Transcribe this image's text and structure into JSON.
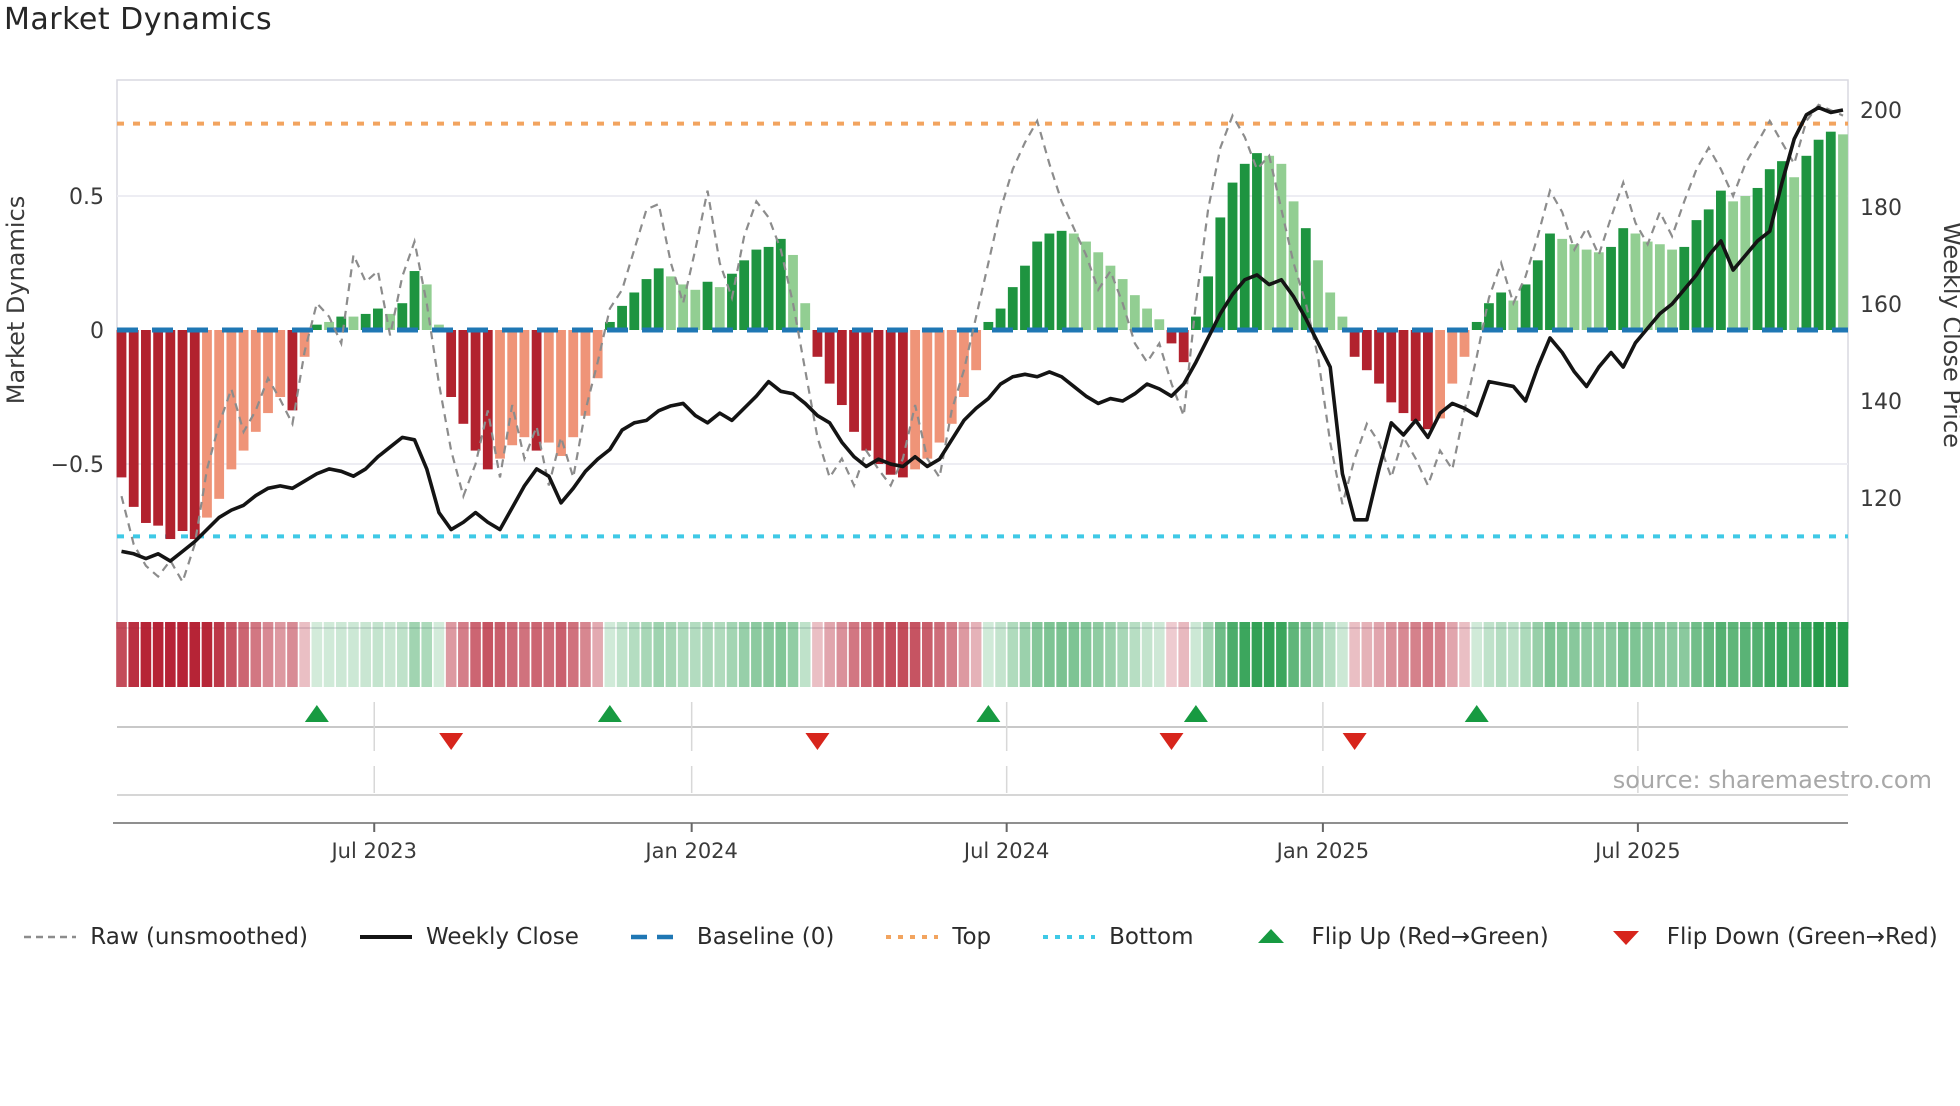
{
  "title": "Market Dynamics",
  "source": "source: sharemaestro.com",
  "axes": {
    "left_label": "Market Dynamics",
    "right_label": "Weekly Close Price",
    "left_ticks": [
      {
        "label": "0.5",
        "value": 0.5
      },
      {
        "label": "0",
        "value": 0
      },
      {
        "label": "−0.5",
        "value": -0.5
      }
    ],
    "right_ticks": [
      {
        "label": "200",
        "value": 200
      },
      {
        "label": "180",
        "value": 180
      },
      {
        "label": "160",
        "value": 160
      },
      {
        "label": "140",
        "value": 140
      },
      {
        "label": "120",
        "value": 120
      }
    ],
    "x_ticks": [
      {
        "label": "Jul 2023",
        "week": 20.7
      },
      {
        "label": "Jan 2024",
        "week": 46.7
      },
      {
        "label": "Jul 2024",
        "week": 72.5
      },
      {
        "label": "Jan 2025",
        "week": 98.4
      },
      {
        "label": "Jul 2025",
        "week": 124.2
      }
    ]
  },
  "colors": {
    "bar_dark_red": "#b2222e",
    "bar_light_red": "#ef9478",
    "bar_dark_green": "#1e9440",
    "bar_light_green": "#92ce92",
    "baseline": "#1f77b4",
    "top_line": "#f2a45f",
    "bottom_line": "#3fc9e6",
    "raw_line": "#8c8c8c",
    "price_line": "#141414",
    "flip_up": "#179a41",
    "flip_down": "#d7251c",
    "heat_red": "#b2182b",
    "heat_green": "#1a9641",
    "grid": "#ededf3",
    "spine": "#d9d9e0",
    "band_line": "#c8c8c8",
    "axis_spine": "#8f8f8f",
    "axis_text": "#3a3a3a",
    "title_text": "#262626",
    "source_text": "#a8a8a8"
  },
  "legend": {
    "items": [
      {
        "label": "Raw (unsmoothed)",
        "swatch": "dash-gray"
      },
      {
        "label": "Weekly Close",
        "swatch": "solid-black"
      },
      {
        "label": "Baseline (0)",
        "swatch": "dash-blue"
      },
      {
        "label": "Top",
        "swatch": "dot-orange"
      },
      {
        "label": "Bottom",
        "swatch": "dot-cyan"
      },
      {
        "label": "Flip Up (Red→Green)",
        "swatch": "tri-up"
      },
      {
        "label": "Flip Down (Green→Red)",
        "swatch": "tri-down"
      }
    ]
  },
  "chart_data": {
    "type": "combo",
    "description": "Weekly market-dynamics oscillator bars with raw overlay, weekly close price line, threshold lines, heatmap strip and regime-flip markers",
    "weeks": 142,
    "osc_axis": {
      "label": "Market Dynamics",
      "ticks": [
        0.5,
        0,
        -0.5
      ]
    },
    "price_axis": {
      "label": "Weekly Close Price",
      "ticks": [
        200,
        180,
        160,
        140,
        120
      ]
    },
    "thresholds": {
      "baseline": 0,
      "top": 0.77,
      "bottom": -0.77
    },
    "series": [
      {
        "name": "Oscillator (smoothed bars)",
        "values": [
          -0.55,
          -0.66,
          -0.72,
          -0.73,
          -0.78,
          -0.75,
          -0.78,
          -0.7,
          -0.63,
          -0.52,
          -0.45,
          -0.38,
          -0.31,
          -0.25,
          -0.3,
          -0.1,
          0.02,
          0.03,
          0.05,
          0.05,
          0.06,
          0.08,
          0.06,
          0.1,
          0.22,
          0.17,
          0.02,
          -0.25,
          -0.35,
          -0.45,
          -0.52,
          -0.48,
          -0.43,
          -0.4,
          -0.45,
          -0.42,
          -0.47,
          -0.4,
          -0.32,
          -0.18,
          0.03,
          0.09,
          0.14,
          0.19,
          0.23,
          0.2,
          0.17,
          0.15,
          0.18,
          0.16,
          0.21,
          0.26,
          0.3,
          0.31,
          0.34,
          0.28,
          0.1,
          -0.1,
          -0.2,
          -0.28,
          -0.38,
          -0.45,
          -0.5,
          -0.54,
          -0.55,
          -0.52,
          -0.48,
          -0.42,
          -0.35,
          -0.25,
          -0.15,
          0.03,
          0.08,
          0.16,
          0.24,
          0.33,
          0.36,
          0.37,
          0.36,
          0.33,
          0.29,
          0.24,
          0.19,
          0.13,
          0.08,
          0.04,
          -0.05,
          -0.12,
          0.05,
          0.2,
          0.42,
          0.55,
          0.62,
          0.66,
          0.65,
          0.62,
          0.48,
          0.38,
          0.26,
          0.14,
          0.05,
          -0.1,
          -0.15,
          -0.2,
          -0.27,
          -0.31,
          -0.34,
          -0.37,
          -0.33,
          -0.2,
          -0.1,
          0.03,
          0.1,
          0.14,
          0.11,
          0.17,
          0.26,
          0.36,
          0.34,
          0.32,
          0.3,
          0.29,
          0.31,
          0.38,
          0.36,
          0.33,
          0.32,
          0.3,
          0.31,
          0.41,
          0.45,
          0.52,
          0.48,
          0.5,
          0.53,
          0.6,
          0.63,
          0.57,
          0.65,
          0.71,
          0.74,
          0.73
        ],
        "shade": "dddddddllllllldldldlddlddllddddllldllllldddddlllMlddddd"
      },
      {
        "name": "Raw (unsmoothed)",
        "values": [
          -0.62,
          -0.8,
          -0.88,
          -0.92,
          -0.86,
          -0.94,
          -0.8,
          -0.52,
          -0.35,
          -0.22,
          -0.38,
          -0.3,
          -0.18,
          -0.26,
          -0.35,
          -0.08,
          0.1,
          0.05,
          -0.05,
          0.28,
          0.18,
          0.22,
          -0.02,
          0.2,
          0.33,
          0.1,
          -0.2,
          -0.45,
          -0.62,
          -0.5,
          -0.3,
          -0.55,
          -0.28,
          -0.48,
          -0.36,
          -0.58,
          -0.4,
          -0.55,
          -0.3,
          -0.12,
          0.08,
          0.15,
          0.3,
          0.45,
          0.47,
          0.25,
          0.1,
          0.3,
          0.52,
          0.25,
          0.12,
          0.35,
          0.48,
          0.42,
          0.3,
          0.1,
          -0.15,
          -0.4,
          -0.55,
          -0.48,
          -0.58,
          -0.45,
          -0.52,
          -0.58,
          -0.48,
          -0.28,
          -0.48,
          -0.55,
          -0.3,
          -0.15,
          0.05,
          0.25,
          0.45,
          0.6,
          0.7,
          0.78,
          0.62,
          0.48,
          0.38,
          0.28,
          0.15,
          0.22,
          0.1,
          -0.05,
          -0.12,
          -0.05,
          -0.2,
          -0.32,
          0.1,
          0.45,
          0.68,
          0.8,
          0.72,
          0.6,
          0.65,
          0.45,
          0.25,
          0.1,
          -0.1,
          -0.42,
          -0.65,
          -0.48,
          -0.35,
          -0.42,
          -0.55,
          -0.4,
          -0.48,
          -0.58,
          -0.45,
          -0.52,
          -0.3,
          -0.1,
          0.12,
          0.25,
          0.1,
          0.2,
          0.35,
          0.52,
          0.44,
          0.3,
          0.38,
          0.28,
          0.42,
          0.55,
          0.4,
          0.32,
          0.44,
          0.35,
          0.48,
          0.6,
          0.68,
          0.6,
          0.5,
          0.62,
          0.7,
          0.78,
          0.7,
          0.62,
          0.78,
          0.84,
          0.82,
          0.8
        ]
      },
      {
        "name": "Weekly Close",
        "values": [
          109,
          108.5,
          107.5,
          108.5,
          107,
          109,
          111,
          113.5,
          116,
          117.5,
          118.5,
          120.5,
          122,
          122.5,
          122,
          123.5,
          125,
          126,
          125.5,
          124.5,
          126,
          128.5,
          130.5,
          132.5,
          132,
          126,
          117,
          113.5,
          115,
          117,
          115,
          113.5,
          118,
          122.5,
          126,
          124.5,
          119,
          122,
          125.5,
          128,
          130,
          134,
          135.5,
          136,
          138,
          139,
          139.5,
          137,
          135.5,
          137.5,
          136,
          138.5,
          141,
          144,
          142,
          141.5,
          139.5,
          137,
          135.5,
          131.5,
          128.5,
          126.5,
          128,
          127,
          126.5,
          128.5,
          126.5,
          128,
          132,
          136,
          138.5,
          140.5,
          143.5,
          145,
          145.5,
          145,
          146,
          145,
          143,
          141,
          139.5,
          140.5,
          140,
          141.5,
          143.5,
          142.5,
          141,
          143.5,
          148,
          153,
          158,
          162,
          165,
          166,
          164,
          165,
          161.5,
          157,
          152,
          147,
          125,
          115.5,
          115.5,
          126,
          135.5,
          133,
          136,
          132.5,
          137.5,
          139.5,
          138.5,
          137,
          144,
          143.5,
          143,
          140,
          147,
          153,
          150,
          146,
          143,
          147,
          150,
          147,
          152,
          155,
          158,
          160,
          163,
          166,
          170,
          173,
          167,
          170,
          173,
          175,
          185,
          194,
          199,
          200.5,
          199.5,
          200
        ]
      }
    ],
    "bar_shade_pattern": "dddddddllllllldl dldlddlddll dddd lll d lllll ddddd lll d l ddddd ll dddddddd llllll ddddddd llllllll dddddddd lll d lll ddddddd lll ddd l ddd llll dd llll dddd ll ddd l ddd l",
    "flip_up_weeks": [
      16,
      40,
      71,
      88,
      111
    ],
    "flip_down_weeks": [
      27,
      57,
      86,
      101
    ],
    "legend_position": "bottom",
    "grid": "horizontal at ±0.5 only"
  }
}
